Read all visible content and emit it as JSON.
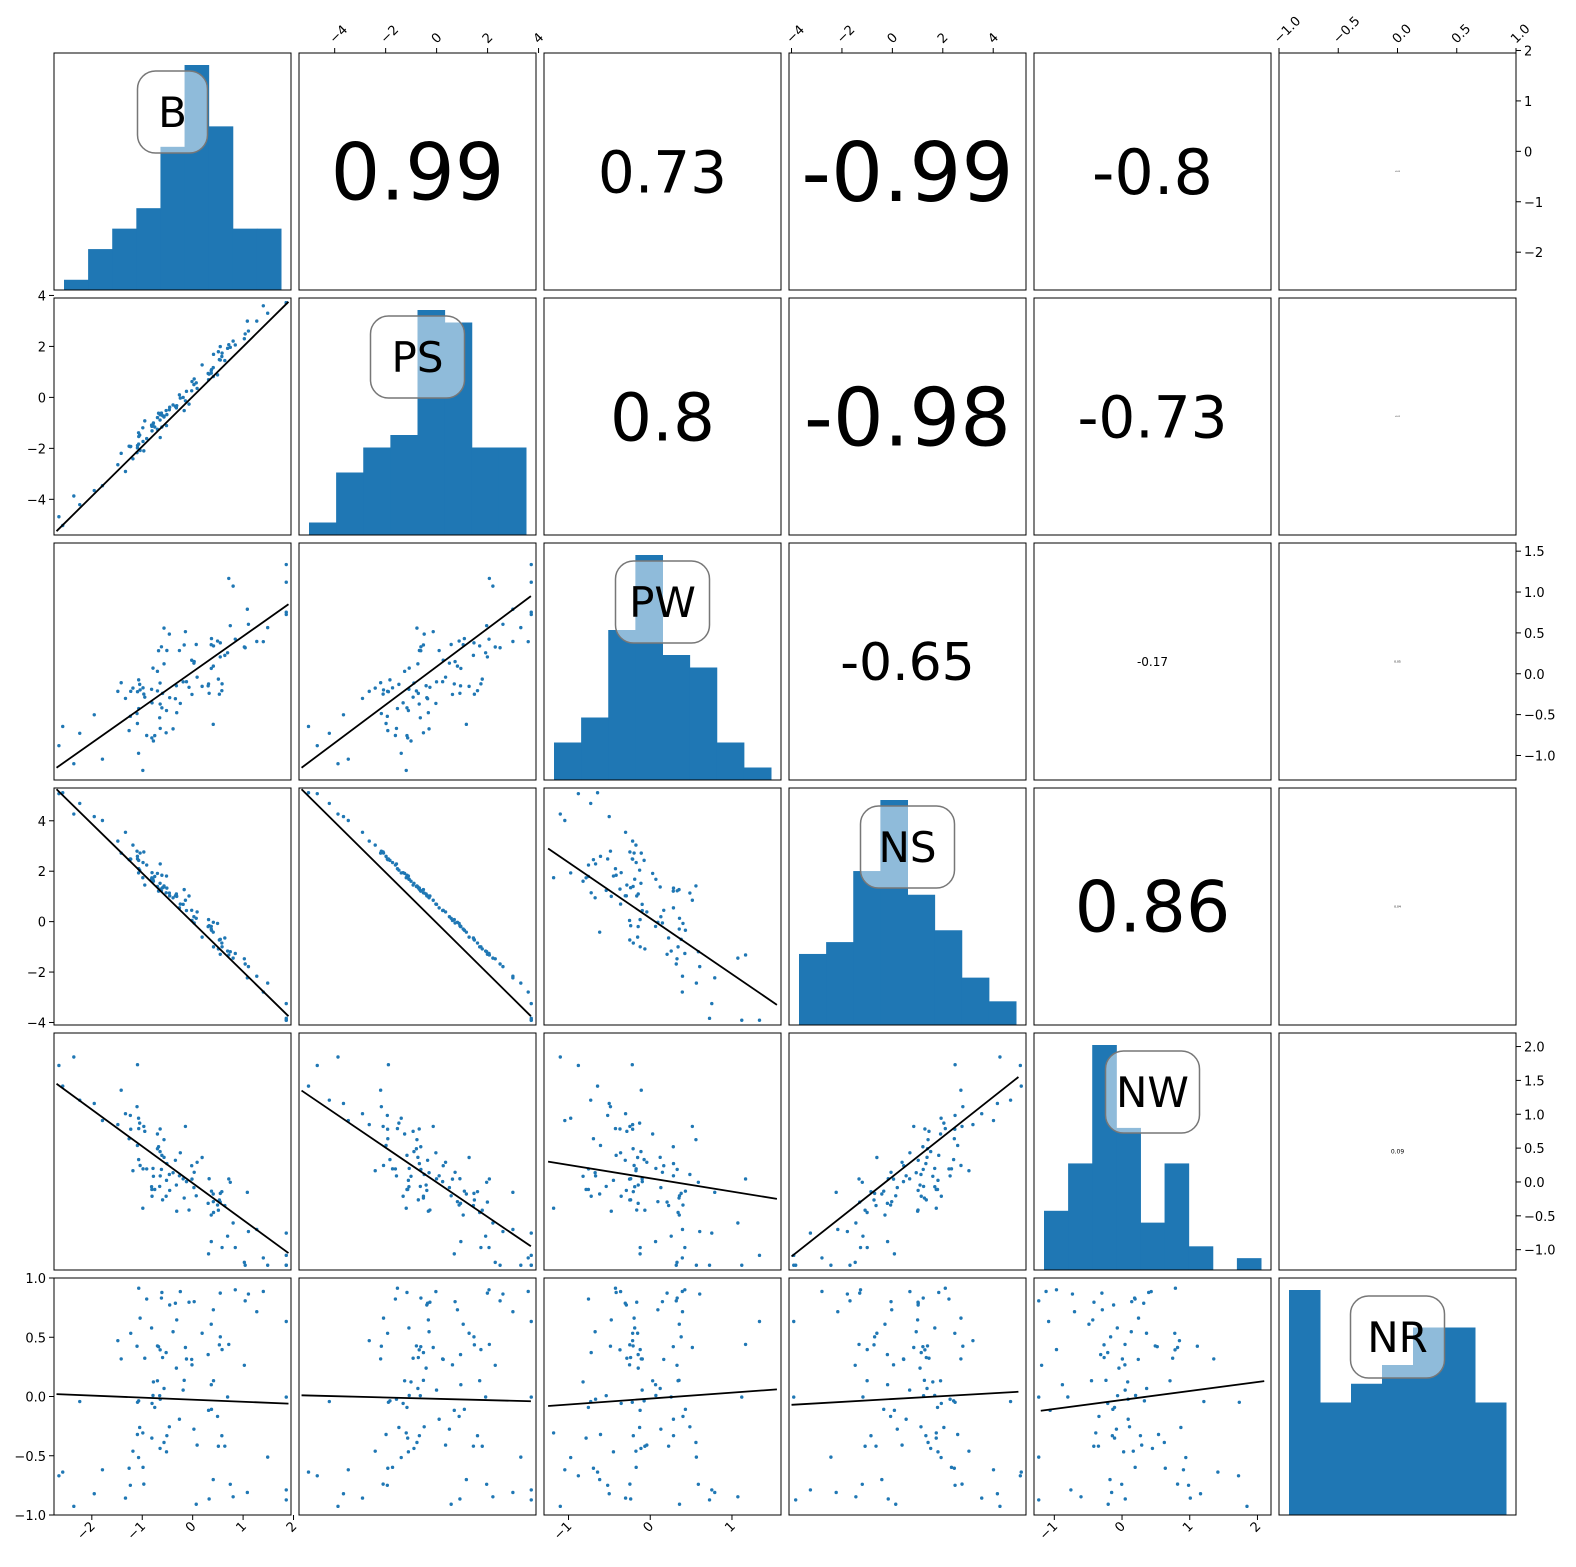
{
  "colors": {
    "hist": "#1f77b4",
    "points": "#1f77b4",
    "fit_line": "#000000",
    "label_box_edge": "#777777"
  },
  "chart_data": {
    "type": "scatter-matrix",
    "variables": [
      "B",
      "PS",
      "PW",
      "NS",
      "NW",
      "NR"
    ],
    "upper_triangle_correlations": [
      {
        "row": "B",
        "col": "PS",
        "value": "0.99"
      },
      {
        "row": "B",
        "col": "PW",
        "value": "0.73"
      },
      {
        "row": "B",
        "col": "NS",
        "value": "-0.99"
      },
      {
        "row": "B",
        "col": "NW",
        "value": "-0.8"
      },
      {
        "row": "B",
        "col": "NR",
        "value": "-0.02"
      },
      {
        "row": "PS",
        "col": "PW",
        "value": "0.8"
      },
      {
        "row": "PS",
        "col": "NS",
        "value": "-0.98"
      },
      {
        "row": "PS",
        "col": "NW",
        "value": "-0.73"
      },
      {
        "row": "PS",
        "col": "NR",
        "value": "-0.01"
      },
      {
        "row": "PW",
        "col": "NS",
        "value": "-0.65"
      },
      {
        "row": "PW",
        "col": "NW",
        "value": "-0.17"
      },
      {
        "row": "PW",
        "col": "NR",
        "value": "0.05"
      },
      {
        "row": "NS",
        "col": "NW",
        "value": "0.86"
      },
      {
        "row": "NS",
        "col": "NR",
        "value": "0.04"
      },
      {
        "row": "NW",
        "col": "NR",
        "value": "0.09"
      }
    ],
    "axes": {
      "top": [
        {
          "column": "PS",
          "ticks": [
            "−4",
            "−2",
            "0",
            "2",
            "4"
          ]
        },
        {
          "column": "NS",
          "ticks": [
            "−4",
            "−2",
            "0",
            "2",
            "4"
          ]
        },
        {
          "column": "NR",
          "ticks": [
            "−1.0",
            "−0.5",
            "0.0",
            "0.5",
            "1.0"
          ]
        }
      ],
      "bottom": [
        {
          "column": "B",
          "ticks": [
            "−2",
            "−1",
            "0",
            "1",
            "2"
          ]
        },
        {
          "column": "PW",
          "ticks": [
            "−1",
            "0",
            "1"
          ]
        },
        {
          "column": "NW",
          "ticks": [
            "−1",
            "0",
            "1",
            "2"
          ]
        }
      ],
      "left": [
        {
          "row": "PS",
          "ticks": [
            "4",
            "2",
            "0",
            "−2",
            "−4"
          ]
        },
        {
          "row": "NS",
          "ticks": [
            "4",
            "2",
            "0",
            "−2",
            "−4"
          ]
        },
        {
          "row": "NR",
          "ticks": [
            "1.0",
            "0.5",
            "0.0",
            "−0.5",
            "−1.0"
          ]
        }
      ],
      "right": [
        {
          "row": "B",
          "ticks": [
            "2",
            "1",
            "0",
            "−1",
            "−2"
          ]
        },
        {
          "row": "PW",
          "ticks": [
            "1.5",
            "1.0",
            "0.5",
            "0.0",
            "−0.5",
            "−1.0"
          ]
        },
        {
          "row": "NW",
          "ticks": [
            "2.0",
            "1.5",
            "1.0",
            "0.5",
            "0.0",
            "−0.5",
            "−1.0"
          ]
        }
      ]
    },
    "ranges": {
      "B": [
        -2.75,
        1.95
      ],
      "PS": [
        -5.4,
        3.9
      ],
      "PW": [
        -1.3,
        1.6
      ],
      "NS": [
        -4.1,
        5.3
      ],
      "NW": [
        -1.3,
        2.2
      ],
      "NR": [
        -1.0,
        1.0
      ]
    },
    "histograms": {
      "B": [
        1,
        4,
        6,
        8,
        14,
        22,
        16,
        6,
        6
      ],
      "PS": [
        1,
        5,
        7,
        8,
        18,
        17,
        7,
        7
      ],
      "PW": [
        3,
        5,
        12,
        18,
        10,
        9,
        3,
        1
      ],
      "NS": [
        6,
        7,
        13,
        19,
        11,
        8,
        4,
        2
      ],
      "NW": [
        5,
        9,
        19,
        12,
        4,
        9,
        2,
        0,
        1
      ],
      "NR": [
        12,
        6,
        7,
        8,
        10,
        10,
        6
      ]
    },
    "fit_lines": {
      "PS~B": [
        [
          -2.7,
          -5.25
        ],
        [
          1.9,
          3.75
        ]
      ],
      "PW~B": [
        [
          -2.7,
          -1.15
        ],
        [
          1.9,
          0.85
        ]
      ],
      "PW~PS": [
        [
          -5.3,
          -1.15
        ],
        [
          3.7,
          0.95
        ]
      ],
      "NS~B": [
        [
          -2.7,
          5.25
        ],
        [
          1.9,
          -3.75
        ]
      ],
      "NS~PS": [
        [
          -5.3,
          5.25
        ],
        [
          3.7,
          -3.75
        ]
      ],
      "NS~PW": [
        [
          -1.25,
          2.9
        ],
        [
          1.55,
          -3.3
        ]
      ],
      "NW~B": [
        [
          -2.7,
          1.45
        ],
        [
          1.9,
          -1.05
        ]
      ],
      "NW~PS": [
        [
          -5.3,
          1.35
        ],
        [
          3.7,
          -0.95
        ]
      ],
      "NW~PW": [
        [
          -1.25,
          0.3
        ],
        [
          1.55,
          -0.25
        ]
      ],
      "NW~NS": [
        [
          -4.0,
          -1.1
        ],
        [
          5.0,
          1.55
        ]
      ],
      "NR~B": [
        [
          -2.7,
          0.02
        ],
        [
          1.9,
          -0.06
        ]
      ],
      "NR~PS": [
        [
          -5.3,
          0.01
        ],
        [
          3.7,
          -0.04
        ]
      ],
      "NR~PW": [
        [
          -1.25,
          -0.08
        ],
        [
          1.55,
          0.06
        ]
      ],
      "NR~NS": [
        [
          -4.0,
          -0.07
        ],
        [
          5.0,
          0.04
        ]
      ],
      "NR~NW": [
        [
          -1.2,
          -0.12
        ],
        [
          2.1,
          0.13
        ]
      ]
    }
  }
}
